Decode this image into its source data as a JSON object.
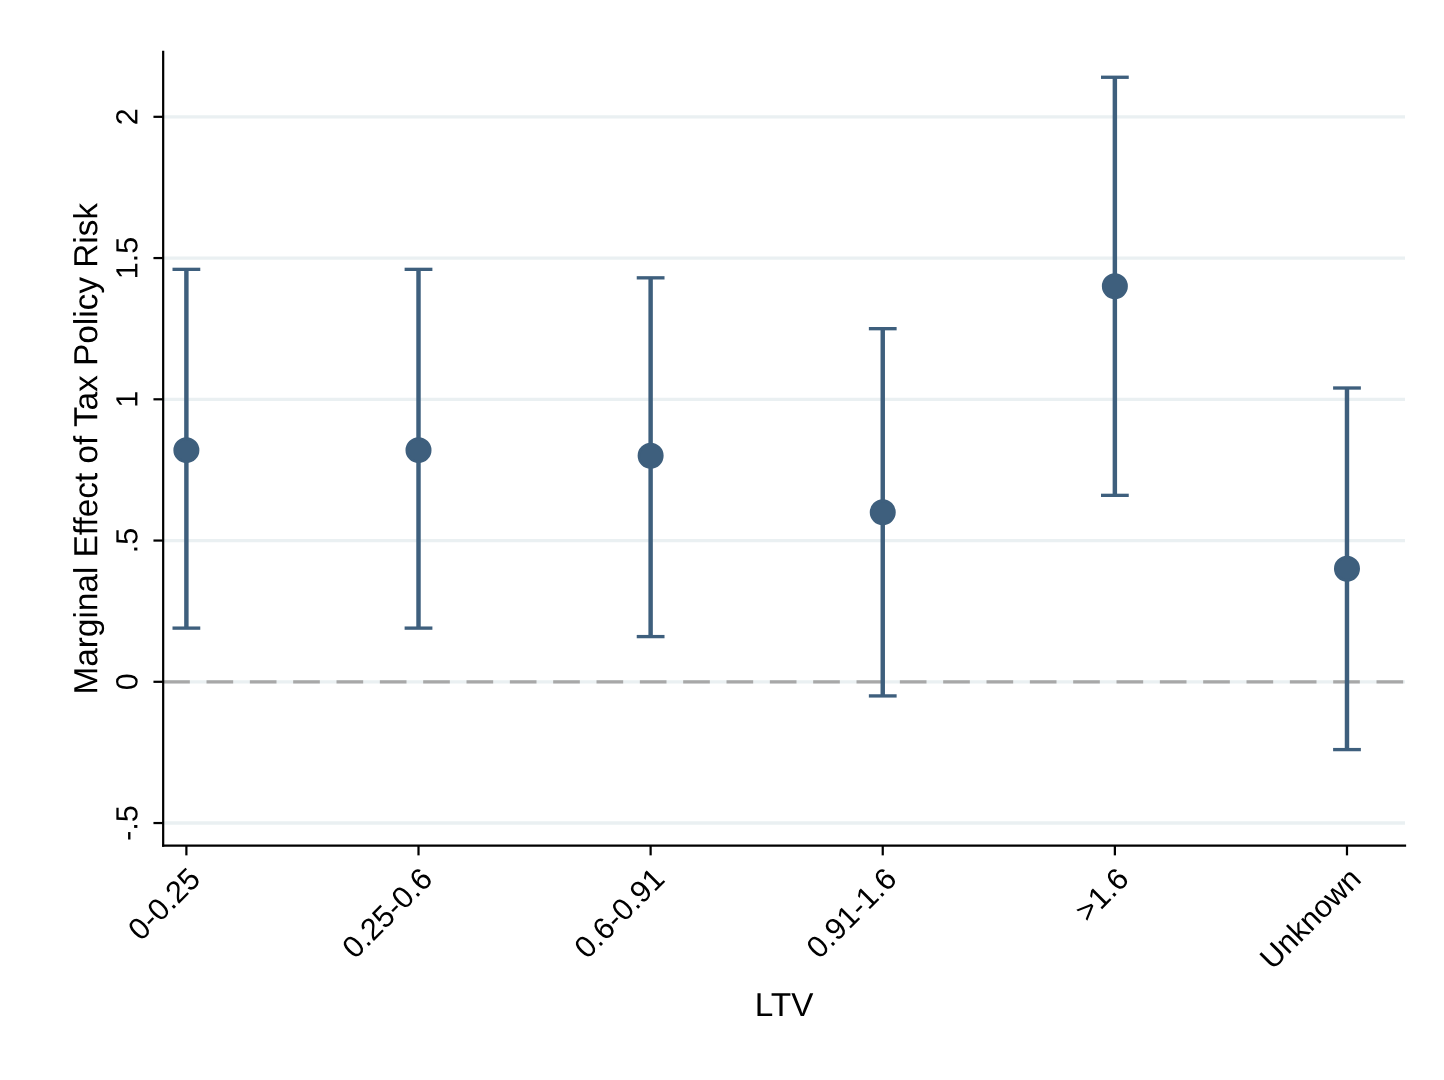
{
  "chart_data": {
    "type": "scatter",
    "xlabel": "LTV",
    "ylabel": "Marginal Effect of Tax Policy Risk",
    "categories": [
      "0-0.25",
      "0.25-0.6",
      "0.6-0.91",
      "0.91-1.6",
      ">1.6",
      "Unknown"
    ],
    "series": [
      {
        "color": "#3e5f7d",
        "values": [
          0.82,
          0.82,
          0.8,
          0.6,
          1.4,
          0.4
        ],
        "errors": [
          [
            0.19,
            1.46
          ],
          [
            0.19,
            1.46
          ],
          [
            0.16,
            1.43
          ],
          [
            -0.05,
            1.25
          ],
          [
            0.66,
            2.14
          ],
          [
            -0.24,
            1.04
          ]
        ]
      }
    ],
    "ylim": [
      -0.58,
      2.23
    ],
    "yticks": [
      {
        "value": -0.5,
        "label": "-.5"
      },
      0,
      {
        "value": 0.5,
        "label": ".5"
      },
      1,
      1.5,
      2
    ],
    "ref_lines": [
      {
        "axis": "y",
        "value": 0,
        "color": "#a8a8a8",
        "line_style": "dashed"
      }
    ],
    "grid": "y",
    "marker": "circle"
  }
}
